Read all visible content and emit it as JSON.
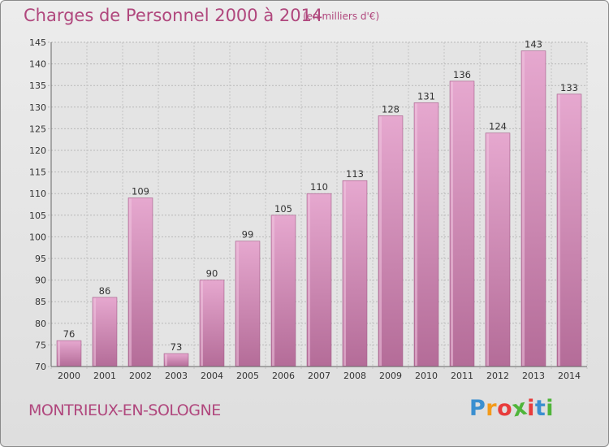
{
  "header": {
    "title": "Charges de Personnel 2000 à 2014",
    "subtitle": "(en milliers d'€)"
  },
  "footer": {
    "commune": "MONTRIEUX-EN-SOLOGNE",
    "logo_letters": [
      "P",
      "r",
      "o",
      "x",
      "i",
      "t",
      "i"
    ],
    "logo_colors": [
      "#3a8fd0",
      "#f39a1a",
      "#e83c3c",
      "#4fb53a",
      "#e83c3c",
      "#3a8fd0",
      "#4fb53a"
    ]
  },
  "colors": {
    "bar_top": "#e6a8cf",
    "bar_bottom": "#b46c98",
    "accent": "#b0477d"
  },
  "chart_data": {
    "type": "bar",
    "title": "Charges de Personnel 2000 à 2014",
    "subtitle": "(en milliers d'€)",
    "categories": [
      "2000",
      "2001",
      "2002",
      "2003",
      "2004",
      "2005",
      "2006",
      "2007",
      "2008",
      "2009",
      "2010",
      "2011",
      "2012",
      "2013",
      "2014"
    ],
    "values": [
      76,
      86,
      109,
      73,
      90,
      99,
      105,
      110,
      113,
      128,
      131,
      136,
      124,
      143,
      133
    ],
    "ylim": [
      70,
      145
    ],
    "yticks": [
      70,
      75,
      80,
      85,
      90,
      95,
      100,
      105,
      110,
      115,
      120,
      125,
      130,
      135,
      140,
      145
    ],
    "grid": true,
    "xlabel": "",
    "ylabel": ""
  }
}
